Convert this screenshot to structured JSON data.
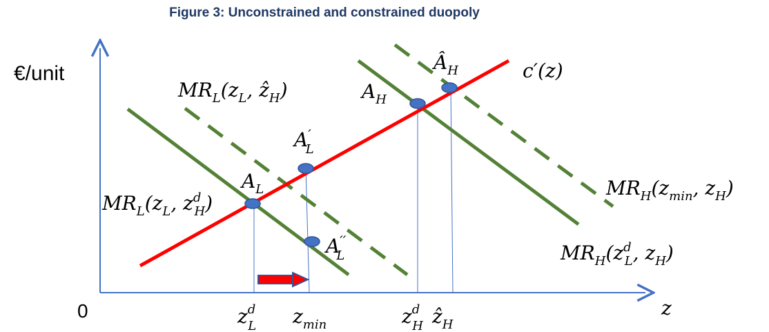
{
  "title": "Figure 3: Unconstrained and constrained duopoly",
  "axes": {
    "y_label": "€/unit",
    "origin_label": "0",
    "x_label": "z"
  },
  "curves": {
    "marginal_cost": {
      "label_main": "c′(z)",
      "color": "#ff0000"
    },
    "mr_l_dashed": {
      "label_main": "MR",
      "label_sub": "L",
      "label_args": "(z",
      "label_args_sub": "L",
      "label_rest": ", ẑ",
      "label_rest_sub": "H",
      "label_close": ")"
    },
    "mr_l_solid": {
      "label_main": "MR",
      "label_sub": "L",
      "label_args": "(z",
      "label_args_sub": "L",
      "label_rest": ", z",
      "label_rest_sup": "d",
      "label_rest_sub": "H",
      "label_close": ")"
    },
    "mr_h_dashed": {
      "label_main": "MR",
      "label_sub": "H",
      "label_args": "(z",
      "label_args_sub": "min",
      "label_rest": ",  z",
      "label_rest_sub": "H",
      "label_close": ")"
    },
    "mr_h_solid": {
      "label_main": "MR",
      "label_sub": "H",
      "label_args": "(z",
      "label_args_sup": "d",
      "label_args_sub": "L",
      "label_rest": ", z",
      "label_rest_sub": "H",
      "label_close": ")"
    },
    "green_color": "#538135",
    "point_color": "#4472c4",
    "axis_color": "#4472c4",
    "arrow_color": "#ff0000"
  },
  "points": {
    "A_L": {
      "main": "A",
      "sub": "L"
    },
    "A_L_prime": {
      "main": "A",
      "sub": "L",
      "mark": "′"
    },
    "A_L_dprime": {
      "main": "A",
      "sub": "L",
      "mark": "′′"
    },
    "A_H": {
      "main": "A",
      "sub": "H"
    },
    "A_H_hat": {
      "main": "Â",
      "sub": "H"
    }
  },
  "x_ticks": {
    "zLd": {
      "main": "z",
      "sup": "d",
      "sub": "L"
    },
    "zmin": {
      "main": "z",
      "sub": "min"
    },
    "zHd": {
      "main": "z",
      "sup": "d",
      "sub": "H"
    },
    "zH_hat": {
      "main": "ẑ",
      "sub": "H"
    }
  }
}
